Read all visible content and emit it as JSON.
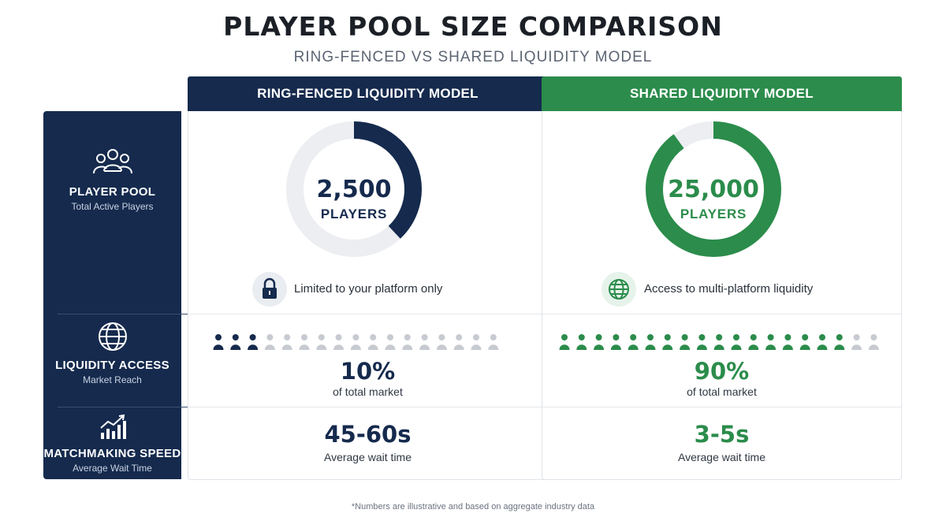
{
  "header": {
    "title": "PLAYER POOL SIZE COMPARISON",
    "subtitle": "RING-FENCED VS SHARED LIQUIDITY MODEL"
  },
  "sidebar": {
    "player_pool": {
      "title": "PLAYER POOL",
      "desc": "Total Active Players",
      "icon": "users-icon"
    },
    "liquidity_access": {
      "title": "LIQUIDITY ACCESS",
      "desc": "Market Reach",
      "icon": "globe-icon"
    },
    "matchmaking_speed": {
      "title": "MATCHMAKING SPEED",
      "desc": "Average Wait Time",
      "icon": "bar-chart-icon"
    }
  },
  "ring_fenced": {
    "header": "RING-FENCED LIQUIDITY MODEL",
    "players_value": "2,500",
    "players_label": "PLAYERS",
    "donut_fraction": 0.38,
    "access_text": "Limited to your platform only",
    "access_icon": "lock-icon",
    "market_share": "10%",
    "market_share_label": "of total market",
    "people_filled": 3,
    "people_total": 17,
    "wait_time": "45-60s",
    "wait_time_label": "Average wait time",
    "color": "#152a4d"
  },
  "shared": {
    "header": "SHARED LIQUIDITY MODEL",
    "players_value": "25,000",
    "players_label": "PLAYERS",
    "donut_fraction": 0.9,
    "access_text": "Access to multi-platform liquidity",
    "access_icon": "globe-icon",
    "market_share": "90%",
    "market_share_label": "of total market",
    "people_filled": 17,
    "people_total": 19,
    "wait_time": "3-5s",
    "wait_time_label": "Average wait time",
    "color": "#2b8c4b"
  },
  "footnote": "*Numbers are illustrative and based on aggregate industry data"
}
